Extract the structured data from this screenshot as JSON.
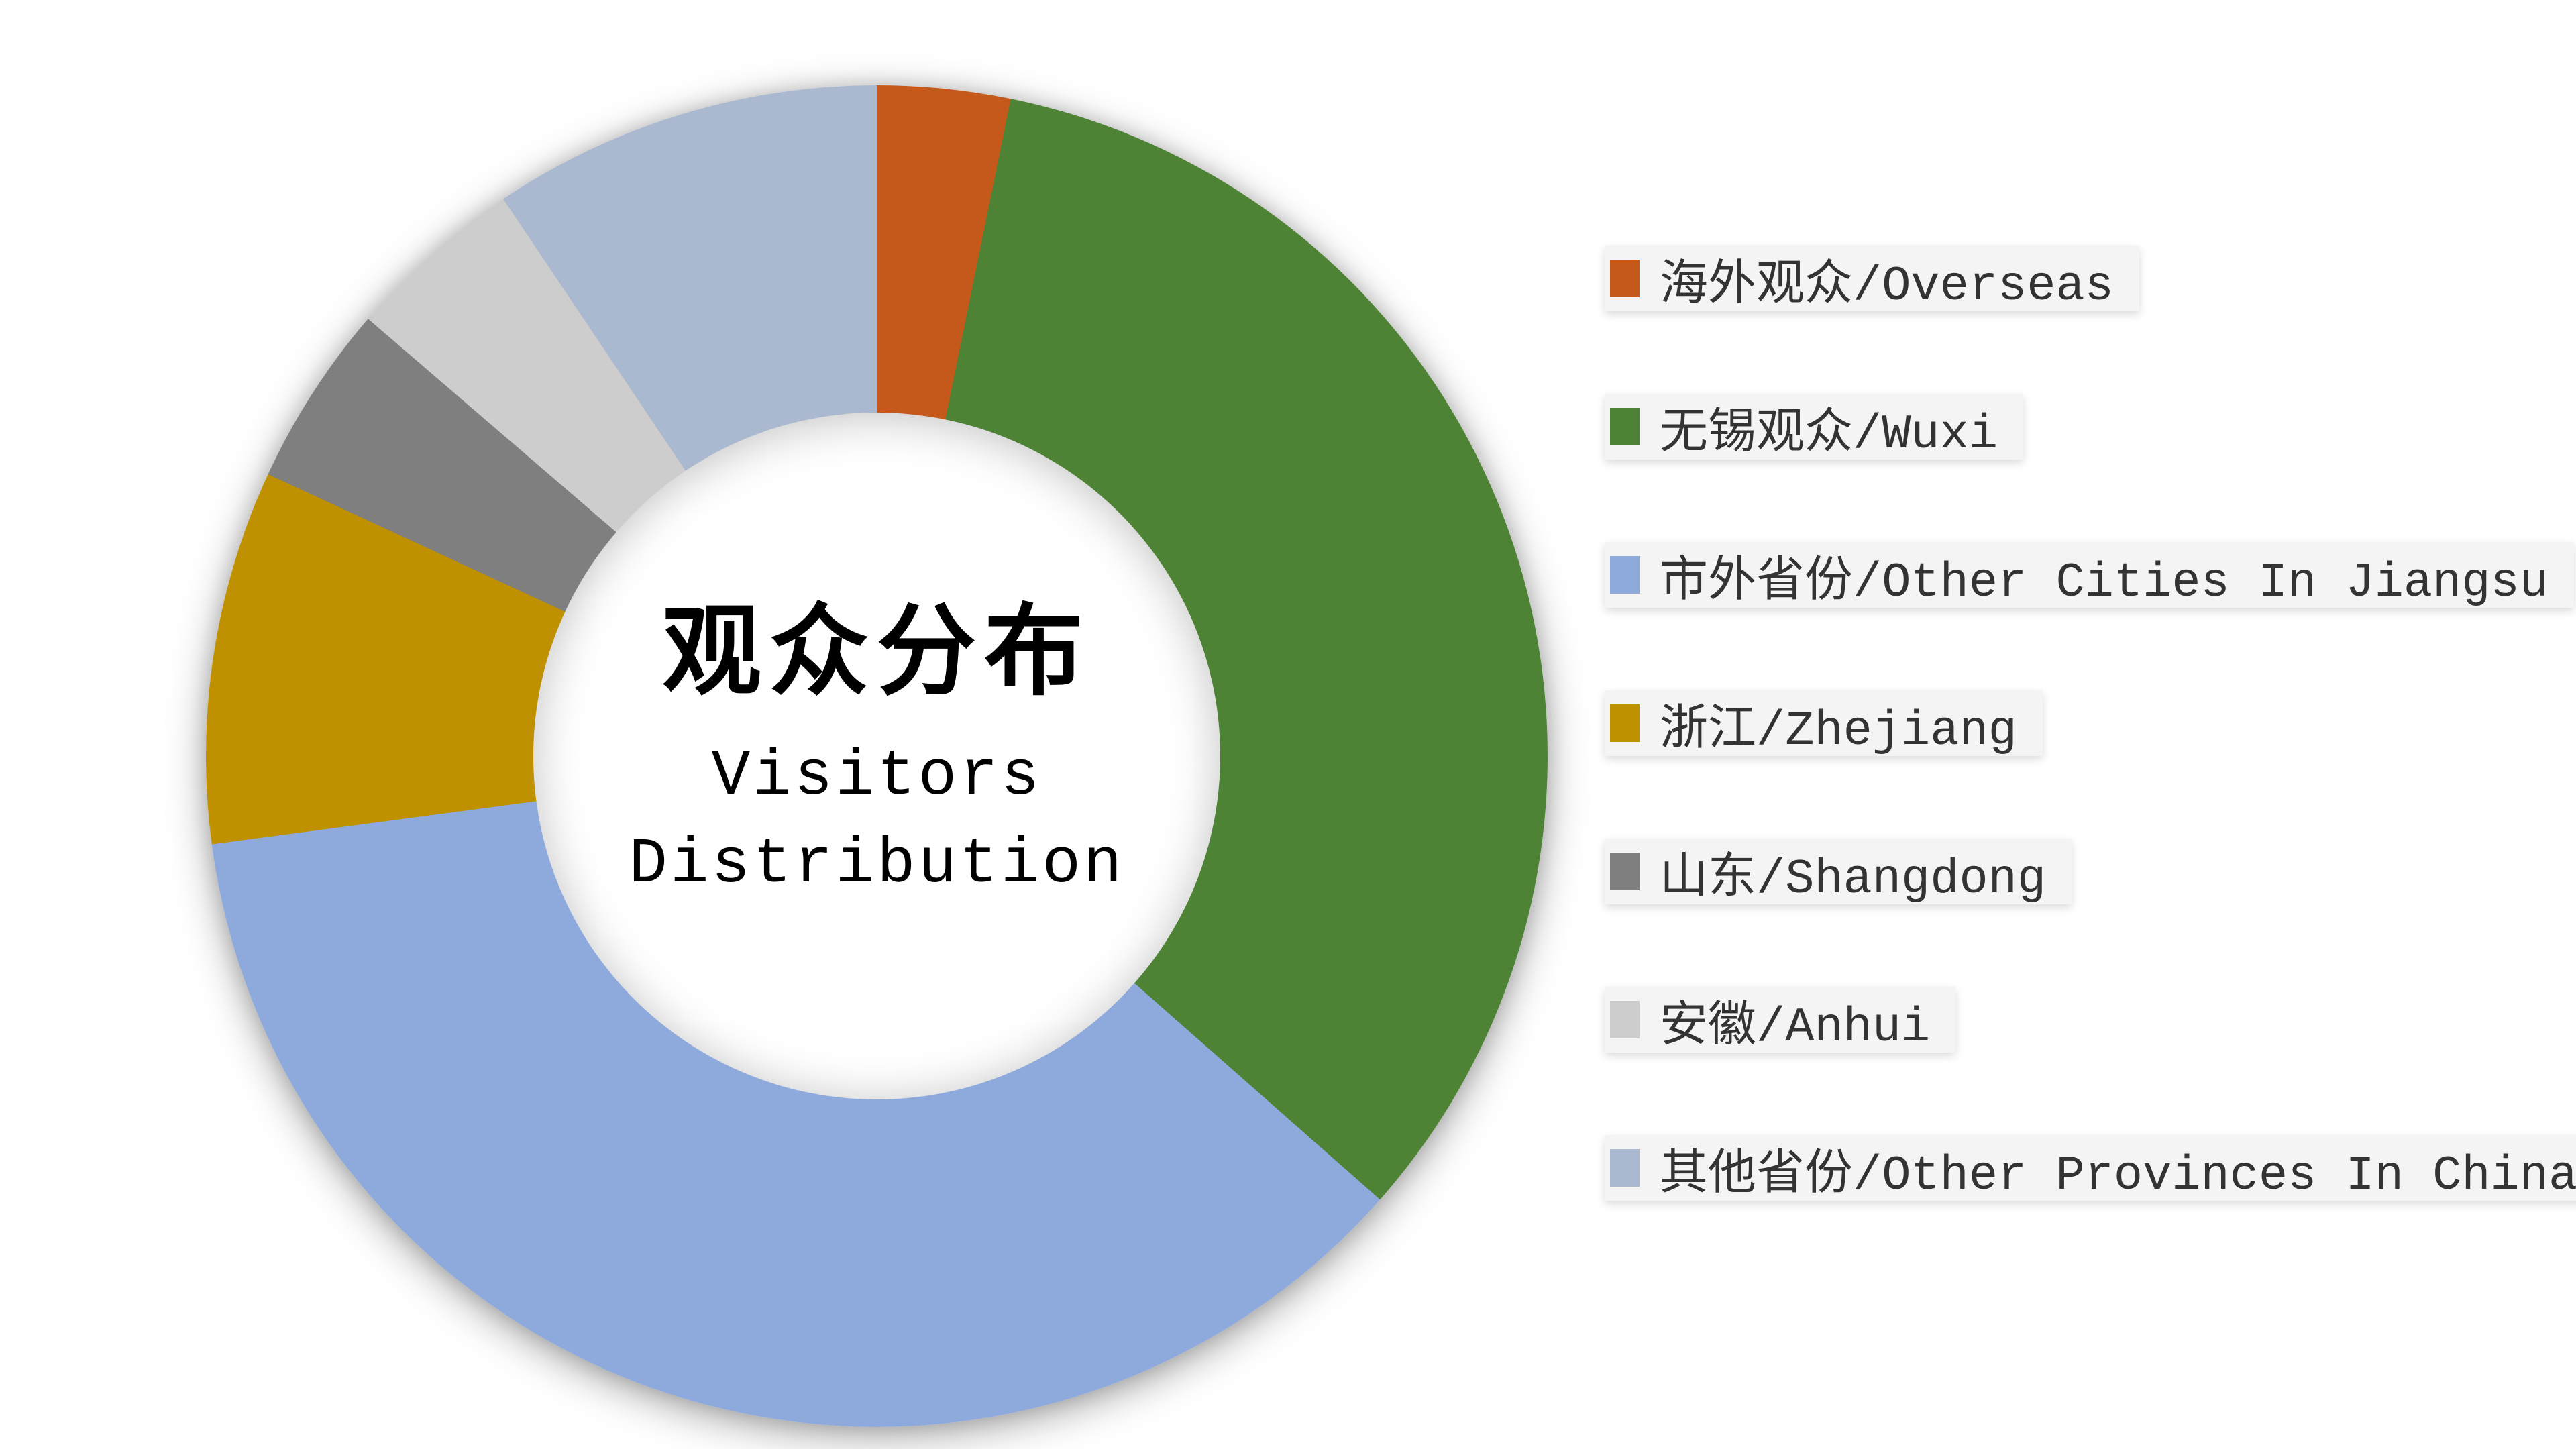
{
  "chart_data": {
    "type": "pie",
    "subtype": "donut",
    "title": "观众分布",
    "subtitle_lines": [
      "Visitors",
      "Distribution"
    ],
    "legend_position": "right",
    "donut_hole_ratio": 0.51,
    "background_color": "#ffffff",
    "values_are_estimates_from_angles": true,
    "series": [
      {
        "label": "海外观众/Overseas",
        "value": 3.2,
        "color": "#C5591B"
      },
      {
        "label": "无锡观众/Wuxi",
        "value": 33.3,
        "color": "#4E8234"
      },
      {
        "label": "市外省份/Other Cities In Jiangsu",
        "value": 36.4,
        "color": "#8EA9DB"
      },
      {
        "label": "浙江/Zhejiang",
        "value": 9.0,
        "color": "#BF9000"
      },
      {
        "label": "山东/Shangdong",
        "value": 4.4,
        "color": "#7F7F7F"
      },
      {
        "label": "安徽/Anhui",
        "value": 4.3,
        "color": "#CDCDCD"
      },
      {
        "label": "其他省份/Other Provinces In China",
        "value": 9.4,
        "color": "#ABB9D0"
      }
    ]
  },
  "center_label": {
    "title_zh": "观众分布",
    "title_en_line1": "Visitors",
    "title_en_line2": "Distribution"
  }
}
